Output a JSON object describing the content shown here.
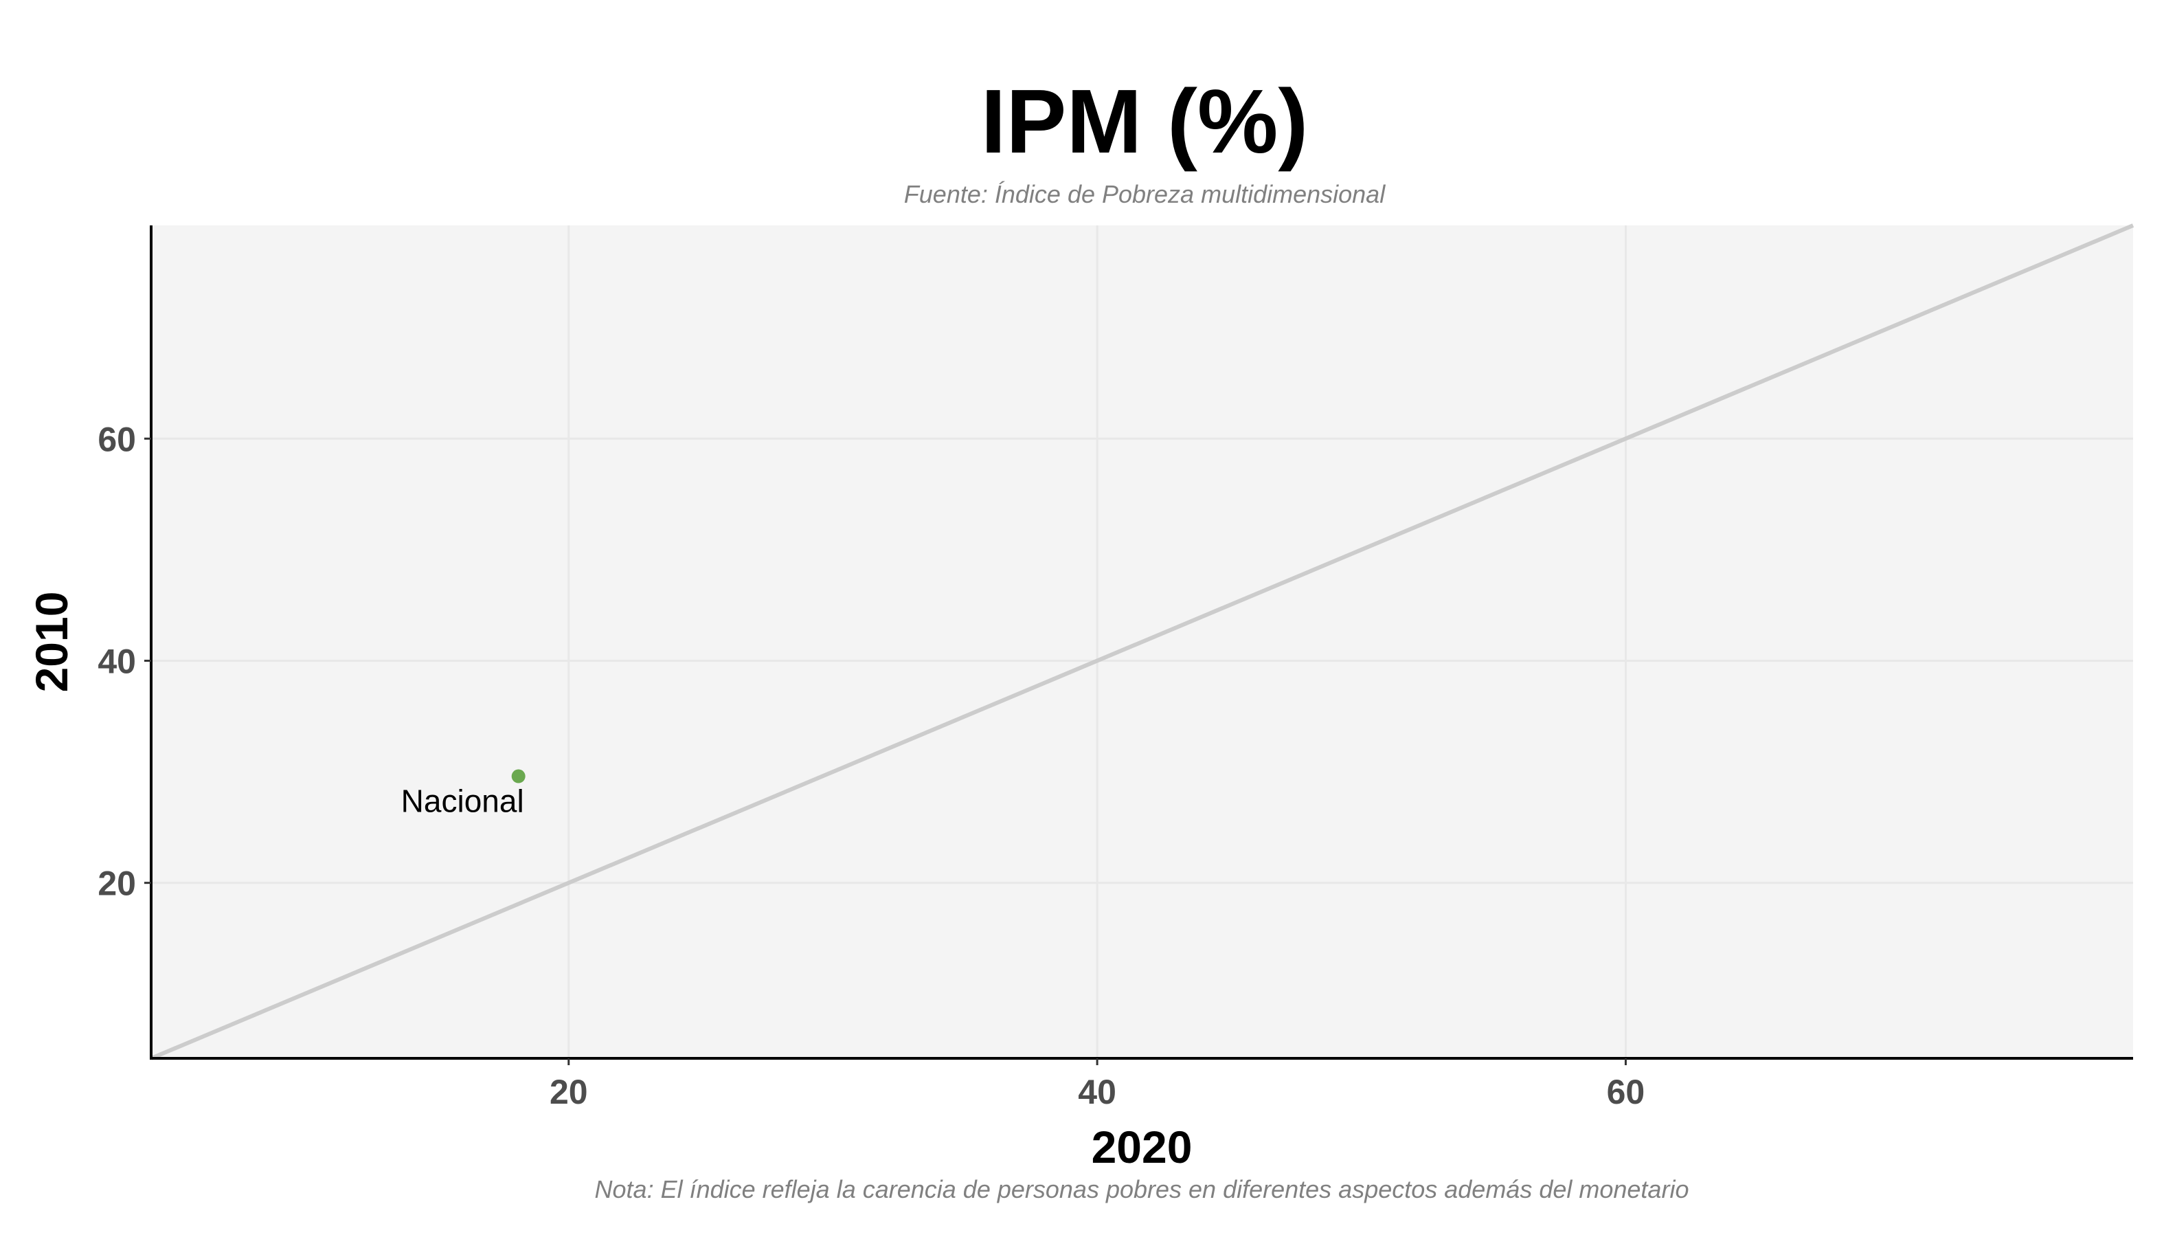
{
  "chart_data": {
    "type": "scatter",
    "title": "IPM (%)",
    "subtitle": "Fuente: Índice de Pobreza multidimensional",
    "caption": "Nota: El índice refleja la carencia de personas pobres en diferentes aspectos además del monetario",
    "xlabel": "2020",
    "ylabel": "2010",
    "xlim": [
      4.2,
      79.2
    ],
    "ylim": [
      4.2,
      79.2
    ],
    "x_ticks": [
      20,
      40,
      60
    ],
    "y_ticks": [
      20,
      40,
      60
    ],
    "grid": true,
    "reference_line": {
      "type": "identity",
      "color": "#cccccc"
    },
    "panel_background": "#f4f4f4",
    "grid_color": "#e8e8e8",
    "points": [
      {
        "label": "Nacional",
        "x": 18.1,
        "y": 29.6,
        "color": "#6aa84f"
      }
    ]
  }
}
